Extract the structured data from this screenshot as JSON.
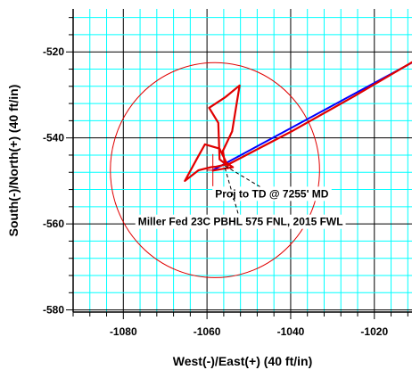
{
  "chart_data": {
    "type": "line",
    "xlabel": "West(-)/East(+) (40 ft/in)",
    "ylabel": "South(-)/North(+) (40 ft/in)",
    "xlim": [
      -1092,
      -1011
    ],
    "ylim": [
      -580.5,
      -510
    ],
    "x_ticks": [
      -1080,
      -1060,
      -1040,
      -1020
    ],
    "y_ticks": [
      -520,
      -540,
      -560,
      -580
    ],
    "grid": true,
    "grid_color": "#00ffff",
    "series": [
      {
        "color": "#0000ff",
        "points": [
          [
            -1058.6,
            -547.5
          ],
          [
            -1011,
            -522.5
          ]
        ]
      },
      {
        "color": "#e00000",
        "points": [
          [
            -1058.6,
            -547.6
          ],
          [
            -1053.8,
            -546.8
          ],
          [
            -1055.8,
            -545.5
          ],
          [
            -1056.2,
            -543.0
          ],
          [
            -1054.0,
            -538.5
          ],
          [
            -1052.2,
            -527.8
          ],
          [
            -1055.6,
            -530.5
          ],
          [
            -1059.5,
            -533.0
          ],
          [
            -1057.3,
            -536.5
          ],
          [
            -1057.0,
            -545.0
          ],
          [
            -1055.0,
            -546.5
          ],
          [
            -1057.0,
            -542.5
          ],
          [
            -1060.5,
            -541.5
          ],
          [
            -1062.5,
            -545.0
          ],
          [
            -1065.3,
            -550.0
          ],
          [
            -1062.0,
            -547.5
          ],
          [
            -1059.0,
            -546.8
          ],
          [
            -1057.8,
            -546.7
          ],
          [
            -1054.6,
            -546.0
          ],
          [
            -1040.0,
            -538.6
          ],
          [
            -1025.0,
            -530.4
          ],
          [
            -1011,
            -522.4
          ]
        ]
      }
    ],
    "target_circle": {
      "color": "#e00000",
      "center": [
        -1058.1,
        -547.5
      ],
      "radius": 25
    },
    "target_cross": {
      "color": "#e00000",
      "center": [
        -1058.6,
        -547.5
      ]
    },
    "annotations": [
      {
        "text": "Proj to TD @ 7255' MD",
        "point": [
          -1055.7,
          -546.5
        ],
        "label_at": [
          -1044.5,
          -553.0
        ]
      },
      {
        "text": "Miller Fed 23C PBHL 575 FNL, 2015 FWL",
        "point": [
          -1055.7,
          -547.0
        ],
        "label_at": [
          -1052.0,
          -559.5
        ]
      }
    ]
  }
}
